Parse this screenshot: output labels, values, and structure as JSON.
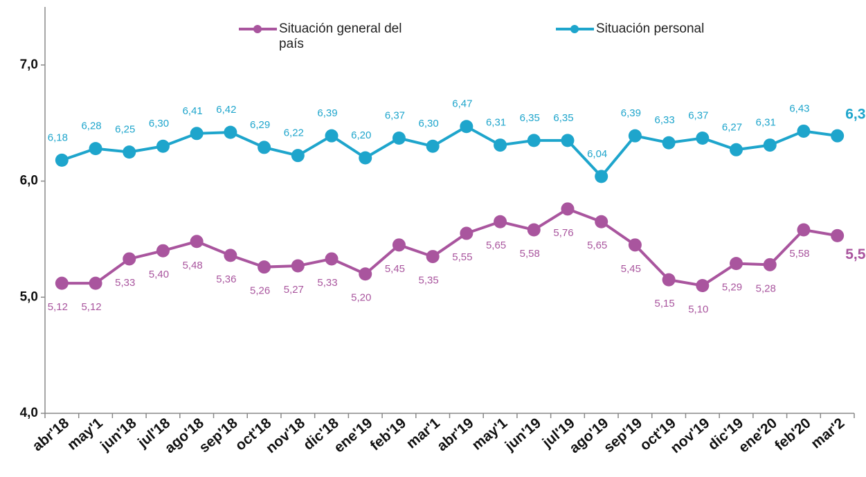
{
  "chart_data": {
    "type": "line",
    "categories": [
      "abr'18",
      "may'1",
      "jun'18",
      "jul'18",
      "ago'18",
      "sep'18",
      "oct'18",
      "nov'18",
      "dic'18",
      "ene'19",
      "feb'19",
      "mar'1",
      "abr'19",
      "may'1",
      "jun'19",
      "jul'19",
      "ago'19",
      "sep'19",
      "oct'19",
      "nov'19",
      "dic'19",
      "ene'20",
      "feb'20",
      "mar'2"
    ],
    "series": [
      {
        "name": "Situación general del país",
        "color": "#a9559e",
        "values": [
          5.12,
          5.12,
          5.33,
          5.4,
          5.48,
          5.36,
          5.26,
          5.27,
          5.33,
          5.2,
          5.45,
          5.35,
          5.55,
          5.65,
          5.58,
          5.76,
          5.65,
          5.45,
          5.15,
          5.1,
          5.29,
          5.28,
          5.58,
          5.53
        ],
        "value_labels": [
          "5,12",
          "5,12",
          "5,33",
          "5,40",
          "5,48",
          "5,36",
          "5,26",
          "5,27",
          "5,33",
          "5,20",
          "5,45",
          "5,35",
          "5,55",
          "5,65",
          "5,58",
          "5,76",
          "5,65",
          "5,45",
          "5,15",
          "5,10",
          "5,29",
          "5,28",
          "5,58",
          "5,53"
        ]
      },
      {
        "name": "Situación personal",
        "color": "#1ea5cc",
        "values": [
          6.18,
          6.28,
          6.25,
          6.3,
          6.41,
          6.42,
          6.29,
          6.22,
          6.39,
          6.2,
          6.37,
          6.3,
          6.47,
          6.31,
          6.35,
          6.35,
          6.04,
          6.39,
          6.33,
          6.37,
          6.27,
          6.31,
          6.43,
          6.39
        ],
        "value_labels": [
          "6,18",
          "6,28",
          "6,25",
          "6,30",
          "6,41",
          "6,42",
          "6,29",
          "6,22",
          "6,39",
          "6,20",
          "6,37",
          "6,30",
          "6,47",
          "6,31",
          "6,35",
          "6,35",
          "6,04",
          "6,39",
          "6,33",
          "6,37",
          "6,27",
          "6,31",
          "6,43",
          "6,39"
        ]
      }
    ],
    "ylim": [
      4,
      7.5
    ],
    "yticks": [
      {
        "value": 4,
        "label": "4,0"
      },
      {
        "value": 5,
        "label": "5,0"
      },
      {
        "value": 6,
        "label": "6,0"
      },
      {
        "value": 7,
        "label": "7,0"
      }
    ],
    "grid": false,
    "legend": "top"
  }
}
